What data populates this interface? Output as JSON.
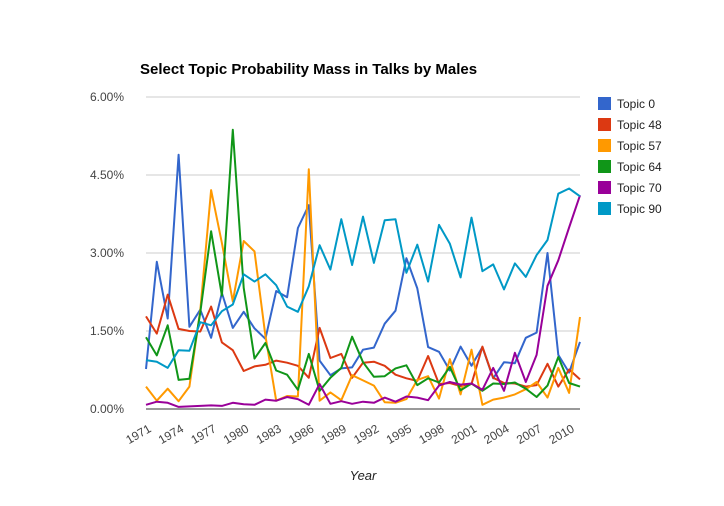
{
  "chart_data": {
    "type": "line",
    "title": "Select Topic Probability Mass in Talks by Males",
    "xlabel": "Year",
    "ylabel": "",
    "xlim": [
      1971,
      2011
    ],
    "ylim": [
      0,
      0.06
    ],
    "y_ticks": [
      "0.00%",
      "1.50%",
      "3.00%",
      "4.50%",
      "6.00%"
    ],
    "y_tick_values": [
      0,
      0.015,
      0.03,
      0.045,
      0.06
    ],
    "x_tick_labels": [
      "1971",
      "1974",
      "1977",
      "1980",
      "1983",
      "1986",
      "1989",
      "1992",
      "1995",
      "1998",
      "2001",
      "2004",
      "2007",
      "2010"
    ],
    "x_tick_values": [
      1971,
      1974,
      1977,
      1980,
      1983,
      1986,
      1989,
      1992,
      1995,
      1998,
      2001,
      2004,
      2007,
      2010
    ],
    "grid": true,
    "legend_position": "right",
    "x": [
      1971,
      1972,
      1973,
      1974,
      1975,
      1976,
      1977,
      1978,
      1979,
      1980,
      1981,
      1982,
      1983,
      1984,
      1985,
      1986,
      1987,
      1988,
      1989,
      1990,
      1991,
      1992,
      1993,
      1994,
      1995,
      1996,
      1997,
      1998,
      1999,
      2000,
      2001,
      2002,
      2003,
      2004,
      2005,
      2006,
      2007,
      2008,
      2009,
      2010,
      2011
    ],
    "series": [
      {
        "name": "Topic 0",
        "color": "#3366cc",
        "values": [
          0.0077,
          0.0283,
          0.0174,
          0.0489,
          0.0158,
          0.0191,
          0.0137,
          0.0223,
          0.0156,
          0.0187,
          0.0155,
          0.0135,
          0.0227,
          0.0215,
          0.0348,
          0.0392,
          0.0093,
          0.0065,
          0.0078,
          0.008,
          0.0114,
          0.0118,
          0.0164,
          0.0189,
          0.029,
          0.0232,
          0.0119,
          0.011,
          0.0074,
          0.012,
          0.0083,
          0.0119,
          0.0059,
          0.009,
          0.0088,
          0.0137,
          0.0147,
          0.03,
          0.0104,
          0.007,
          0.0129
        ]
      },
      {
        "name": "Topic 48",
        "color": "#dc3912",
        "values": [
          0.0178,
          0.0145,
          0.022,
          0.0154,
          0.015,
          0.0149,
          0.0197,
          0.0128,
          0.0113,
          0.0073,
          0.0082,
          0.0085,
          0.0093,
          0.0089,
          0.0083,
          0.006,
          0.0156,
          0.0098,
          0.0106,
          0.006,
          0.0089,
          0.0091,
          0.0083,
          0.0066,
          0.0059,
          0.0054,
          0.0102,
          0.0048,
          0.005,
          0.0044,
          0.0048,
          0.012,
          0.006,
          0.005,
          0.0049,
          0.0043,
          0.0046,
          0.0087,
          0.0043,
          0.0076,
          0.0057
        ]
      },
      {
        "name": "Topic 57",
        "color": "#ff9900",
        "values": [
          0.0043,
          0.0016,
          0.0039,
          0.0015,
          0.0043,
          0.019,
          0.0421,
          0.0319,
          0.0207,
          0.0323,
          0.0303,
          0.0141,
          0.0016,
          0.0025,
          0.0024,
          0.0461,
          0.0016,
          0.0032,
          0.0017,
          0.0065,
          0.0055,
          0.0045,
          0.0013,
          0.0012,
          0.0019,
          0.0056,
          0.0063,
          0.002,
          0.0096,
          0.0028,
          0.0114,
          0.0008,
          0.0018,
          0.0022,
          0.0028,
          0.0038,
          0.0052,
          0.0022,
          0.0079,
          0.0031,
          0.0177
        ]
      },
      {
        "name": "Topic 64",
        "color": "#109618",
        "values": [
          0.0138,
          0.0103,
          0.0161,
          0.0056,
          0.0058,
          0.0186,
          0.0342,
          0.0218,
          0.0537,
          0.0233,
          0.0097,
          0.0127,
          0.0074,
          0.0066,
          0.0037,
          0.0106,
          0.0035,
          0.006,
          0.0079,
          0.0139,
          0.009,
          0.0062,
          0.0063,
          0.0078,
          0.0084,
          0.0046,
          0.0059,
          0.0051,
          0.0081,
          0.0036,
          0.0049,
          0.0035,
          0.0049,
          0.0048,
          0.0051,
          0.0039,
          0.0023,
          0.0045,
          0.01,
          0.005,
          0.0043
        ]
      },
      {
        "name": "Topic 70",
        "color": "#990099",
        "values": [
          0.0008,
          0.0014,
          0.0012,
          0.0004,
          0.0005,
          0.0006,
          0.0007,
          0.0006,
          0.0012,
          0.0009,
          0.0008,
          0.0018,
          0.0016,
          0.0023,
          0.0019,
          0.0008,
          0.0048,
          0.001,
          0.0015,
          0.001,
          0.0014,
          0.0012,
          0.0022,
          0.0014,
          0.0024,
          0.0022,
          0.0017,
          0.0045,
          0.0052,
          0.0047,
          0.0049,
          0.0037,
          0.0079,
          0.0035,
          0.0108,
          0.0052,
          0.0104,
          0.0237,
          0.0286,
          0.0349,
          0.0411
        ]
      },
      {
        "name": "Topic 90",
        "color": "#0099c6",
        "values": [
          0.0094,
          0.0091,
          0.0079,
          0.0113,
          0.0112,
          0.0167,
          0.0161,
          0.0188,
          0.0201,
          0.0259,
          0.0245,
          0.0259,
          0.0238,
          0.0197,
          0.0187,
          0.0236,
          0.0315,
          0.0268,
          0.0365,
          0.0277,
          0.037,
          0.0281,
          0.0363,
          0.0365,
          0.0262,
          0.0316,
          0.0245,
          0.0354,
          0.0318,
          0.0253,
          0.0368,
          0.0265,
          0.0278,
          0.023,
          0.028,
          0.0254,
          0.0296,
          0.0325,
          0.0414,
          0.0424,
          0.0409
        ]
      }
    ]
  }
}
